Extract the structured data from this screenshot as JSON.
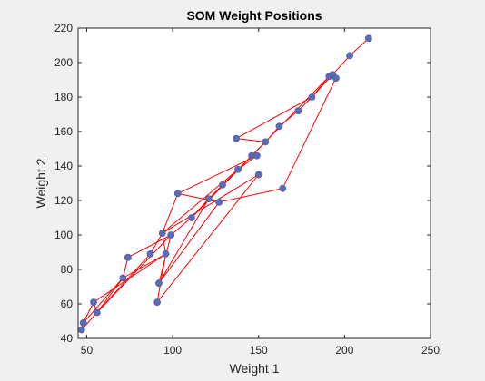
{
  "chart_data": {
    "type": "scatter",
    "title": "SOM Weight Positions",
    "xlabel": "Weight 1",
    "ylabel": "Weight 2",
    "xlim": [
      45,
      250
    ],
    "ylim": [
      40,
      220
    ],
    "xticks": [
      50,
      100,
      150,
      200,
      250
    ],
    "yticks": [
      40,
      60,
      80,
      100,
      120,
      140,
      160,
      180,
      200,
      220
    ],
    "grid": false,
    "colors": {
      "marker": "#5b6bb5",
      "line": "#ff0000",
      "axes_bg": "#ffffff",
      "figure_bg": "#f0f0f0"
    },
    "points": [
      {
        "x": 47,
        "y": 45
      },
      {
        "x": 48,
        "y": 49
      },
      {
        "x": 54,
        "y": 61
      },
      {
        "x": 56,
        "y": 55
      },
      {
        "x": 71,
        "y": 75
      },
      {
        "x": 74,
        "y": 87
      },
      {
        "x": 87,
        "y": 89
      },
      {
        "x": 91,
        "y": 61
      },
      {
        "x": 92,
        "y": 72
      },
      {
        "x": 94,
        "y": 101
      },
      {
        "x": 96,
        "y": 89
      },
      {
        "x": 99,
        "y": 100
      },
      {
        "x": 103,
        "y": 124
      },
      {
        "x": 111,
        "y": 110
      },
      {
        "x": 121,
        "y": 121
      },
      {
        "x": 127,
        "y": 119
      },
      {
        "x": 129,
        "y": 129
      },
      {
        "x": 137,
        "y": 156
      },
      {
        "x": 138,
        "y": 138
      },
      {
        "x": 146,
        "y": 146
      },
      {
        "x": 149,
        "y": 146
      },
      {
        "x": 150,
        "y": 135
      },
      {
        "x": 154,
        "y": 154
      },
      {
        "x": 162,
        "y": 163
      },
      {
        "x": 164,
        "y": 127
      },
      {
        "x": 173,
        "y": 172
      },
      {
        "x": 181,
        "y": 180
      },
      {
        "x": 191,
        "y": 192
      },
      {
        "x": 193,
        "y": 193
      },
      {
        "x": 195,
        "y": 191
      },
      {
        "x": 203,
        "y": 204
      },
      {
        "x": 214,
        "y": 214
      }
    ],
    "edges": [
      [
        0,
        1
      ],
      [
        1,
        2
      ],
      [
        2,
        3
      ],
      [
        3,
        4
      ],
      [
        4,
        5
      ],
      [
        5,
        11
      ],
      [
        11,
        13
      ],
      [
        13,
        14
      ],
      [
        14,
        16
      ],
      [
        16,
        18
      ],
      [
        18,
        19
      ],
      [
        19,
        22
      ],
      [
        22,
        23
      ],
      [
        23,
        25
      ],
      [
        25,
        26
      ],
      [
        26,
        28
      ],
      [
        28,
        30
      ],
      [
        30,
        31
      ],
      [
        1,
        4
      ],
      [
        4,
        10
      ],
      [
        10,
        7
      ],
      [
        7,
        21
      ],
      [
        21,
        9
      ],
      [
        9,
        6
      ],
      [
        6,
        3
      ],
      [
        3,
        11
      ],
      [
        11,
        8
      ],
      [
        8,
        14
      ],
      [
        9,
        12
      ],
      [
        12,
        15
      ],
      [
        15,
        24
      ],
      [
        24,
        29
      ],
      [
        29,
        27
      ],
      [
        27,
        26
      ],
      [
        26,
        17
      ],
      [
        17,
        22
      ],
      [
        12,
        20
      ],
      [
        20,
        18
      ],
      [
        18,
        9
      ],
      [
        9,
        10
      ],
      [
        10,
        2
      ],
      [
        0,
        3
      ],
      [
        13,
        27
      ],
      [
        15,
        8
      ]
    ]
  }
}
